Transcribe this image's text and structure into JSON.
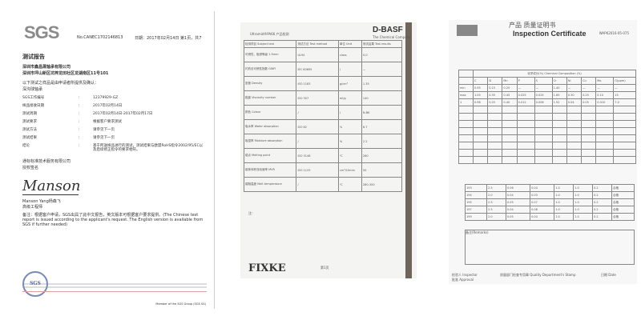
{
  "sgs_report": {
    "logo": "SGS",
    "report_no": "No.CANEC1702146813",
    "date_page": "日期：2017年02月14日 第1页，共7",
    "title": "测试报告",
    "company": "深圳市鑫昌晟轴承有限公司",
    "address": "深圳市坪山新区坑梓龙田社区龙湖南区11号101",
    "intro": "以下测试之样品是由申请者所提供及确认：",
    "sample": "深沟球轴承",
    "fields": [
      {
        "k": "SGS工作编号",
        "v": "12379929-GZ"
      },
      {
        "k": "样品接收日期",
        "v": "2017年02月14日"
      },
      {
        "k": "测试周期",
        "v": "2017年02月14日-2017年02月17日"
      },
      {
        "k": "测试要求",
        "v": "根据客户要求测试"
      },
      {
        "k": "测试方法",
        "v": "请参见下一页"
      },
      {
        "k": "测试结果",
        "v": "请参见下一页"
      },
      {
        "k": "结论",
        "v": "基于所送样品进行的测试，测试结果与欧盟RoHS指令2002/95/EC以及后续修正指令的要求相符。"
      }
    ],
    "lab": "通标标准技术服务有限公司",
    "authorized": "授权签名",
    "signature": "Manson",
    "signer": "Manson Yang杨森飞",
    "signer_title": "高级工程师",
    "note": "备注：根据客户申请，SGS出具了此中文报告，英文版本可根据客户要求提供。(The Chinese test report is issued according to the applicant's request. The English version is available from SGS if further needed)",
    "member": "Member of the SGS Group (SGS SA)"
  },
  "basf_sheet": {
    "header": "Ultramid®PA66 产品检测",
    "logo": "D-BASF",
    "logo_sub": "The Chemical Company",
    "columns": [
      "检测项目 Subject test",
      "测试方法 Test method",
      "单位 Unit",
      "测试结果 Test results"
    ],
    "rows": [
      [
        "可燃性，阻燃等级 1.5mm",
        "UL94",
        "class",
        "V-0"
      ],
      [
        "灼热丝可燃性指数 GWFI",
        "IEC 60695",
        "/",
        "—"
      ],
      [
        "密度 Density",
        "ISO 1183",
        "g/cm³",
        "1.35"
      ],
      [
        "黏度 Viscosity number",
        "ISO 307",
        "ml/g",
        "140"
      ],
      [
        "颜色 Colour",
        "/",
        "/",
        "N.BK"
      ],
      [
        "吸水率 Water absorption",
        "ISO 62",
        "%",
        "6.7"
      ],
      [
        "吸湿率 Moisture absorption",
        "/",
        "%",
        "2.2"
      ],
      [
        "熔点 Melting point",
        "ISO 3146",
        "℃",
        "260"
      ],
      [
        "熔体体积流动速率 MVR",
        "ISO 1133",
        "cm³/10min",
        "50"
      ],
      [
        "熔融温度 Melt temperature",
        "/",
        "℃",
        "280-300"
      ]
    ],
    "notes_label": "注：",
    "footer_logo": "FIXKE",
    "page": "第1页"
  },
  "inspection_cert": {
    "title_cn": "产品 质量证明书",
    "title_en": "Inspection Certificate",
    "doc_no": "WAPK2016-05-075",
    "chem_header": "化学成分(%) Chemical Composition (%)",
    "chem_cols": [
      "C",
      "Si",
      "Mn",
      "P",
      "S",
      "Cr",
      "Ni",
      "Cu",
      "Mo",
      "O(ppm)"
    ],
    "chem_rows": [
      [
        "min",
        "0.95",
        "0.15",
        "0.25",
        "—",
        "—",
        "1.40",
        "—",
        "—",
        "—",
        "—"
      ],
      [
        "max",
        "1.05",
        "0.35",
        "0.45",
        "0.025",
        "0.025",
        "1.65",
        "0.30",
        "0.25",
        "0.10",
        "15"
      ],
      [
        "1",
        "0.98",
        "0.25",
        "0.40",
        "0.012",
        "0.006",
        "1.52",
        "0.04",
        "0.05",
        "0.010",
        "7.0"
      ]
    ],
    "rows": [
      [
        "193",
        "2.5",
        "0.06",
        "0.04",
        "1.0",
        "1.0",
        "0.2",
        "合格"
      ],
      [
        "194",
        "2.0",
        "0.04",
        "0.03",
        "1.0",
        "1.0",
        "0.2",
        "合格"
      ],
      [
        "195",
        "2.5",
        "0.05",
        "0.07",
        "1.0",
        "1.0",
        "0.2",
        "合格"
      ],
      [
        "197",
        "2.5",
        "0.04",
        "0.08",
        "1.0",
        "1.0",
        "0.2",
        "合格"
      ],
      [
        "199",
        "2.0",
        "0.05",
        "0.04",
        "1.0",
        "1.0",
        "0.2",
        "合格"
      ]
    ],
    "remarks_label": "备注(Remarks)",
    "inspector": "检验人 Inspector",
    "approval": "批准 Approval",
    "qa": "质量部门检查专用章 Quality Department's Stamp",
    "date": "日期 Date"
  }
}
